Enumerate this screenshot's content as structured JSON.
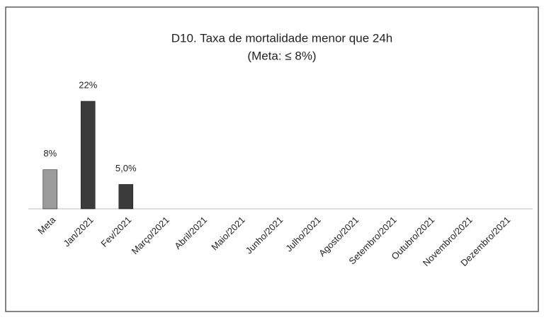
{
  "chart_data": {
    "type": "bar",
    "title": "D10. Taxa de mortalidade menor que 24h",
    "subtitle": "(Meta: ≤ 8%)",
    "categories": [
      "Meta",
      "Jan/2021",
      "Fev/2021",
      "Março/2021",
      "Abril/2021",
      "Maio/2021",
      "Junho/2021",
      "Julho/2021",
      "Agosto/2021",
      "Setembro/2021",
      "Outubro/2021",
      "Novembro/2021",
      "Dezembro/2021"
    ],
    "values": [
      8,
      22,
      5,
      null,
      null,
      null,
      null,
      null,
      null,
      null,
      null,
      null,
      null
    ],
    "value_labels": [
      "8%",
      "22%",
      "5,0%",
      null,
      null,
      null,
      null,
      null,
      null,
      null,
      null,
      null,
      null
    ],
    "colors": [
      "#9b9b9b",
      "#3b3b3b",
      "#3b3b3b",
      null,
      null,
      null,
      null,
      null,
      null,
      null,
      null,
      null,
      null
    ]
  }
}
